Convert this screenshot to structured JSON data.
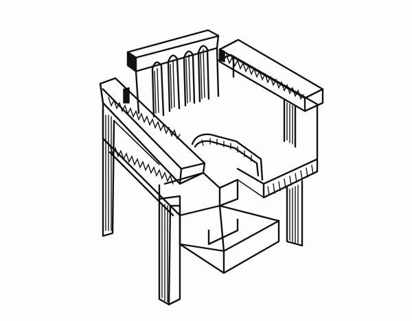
{
  "image": {
    "subject": "hand-drawn-chair-sketch",
    "background_color": "#fdfdfd",
    "ink_color": "#111111",
    "parts": [
      "chair-backrest-icon",
      "left-armrest-icon",
      "right-armrest-icon",
      "seat-icon",
      "drawer-icon",
      "front-left-leg-icon",
      "front-right-leg-icon",
      "back-left-leg-icon",
      "side-panel-icon"
    ]
  }
}
